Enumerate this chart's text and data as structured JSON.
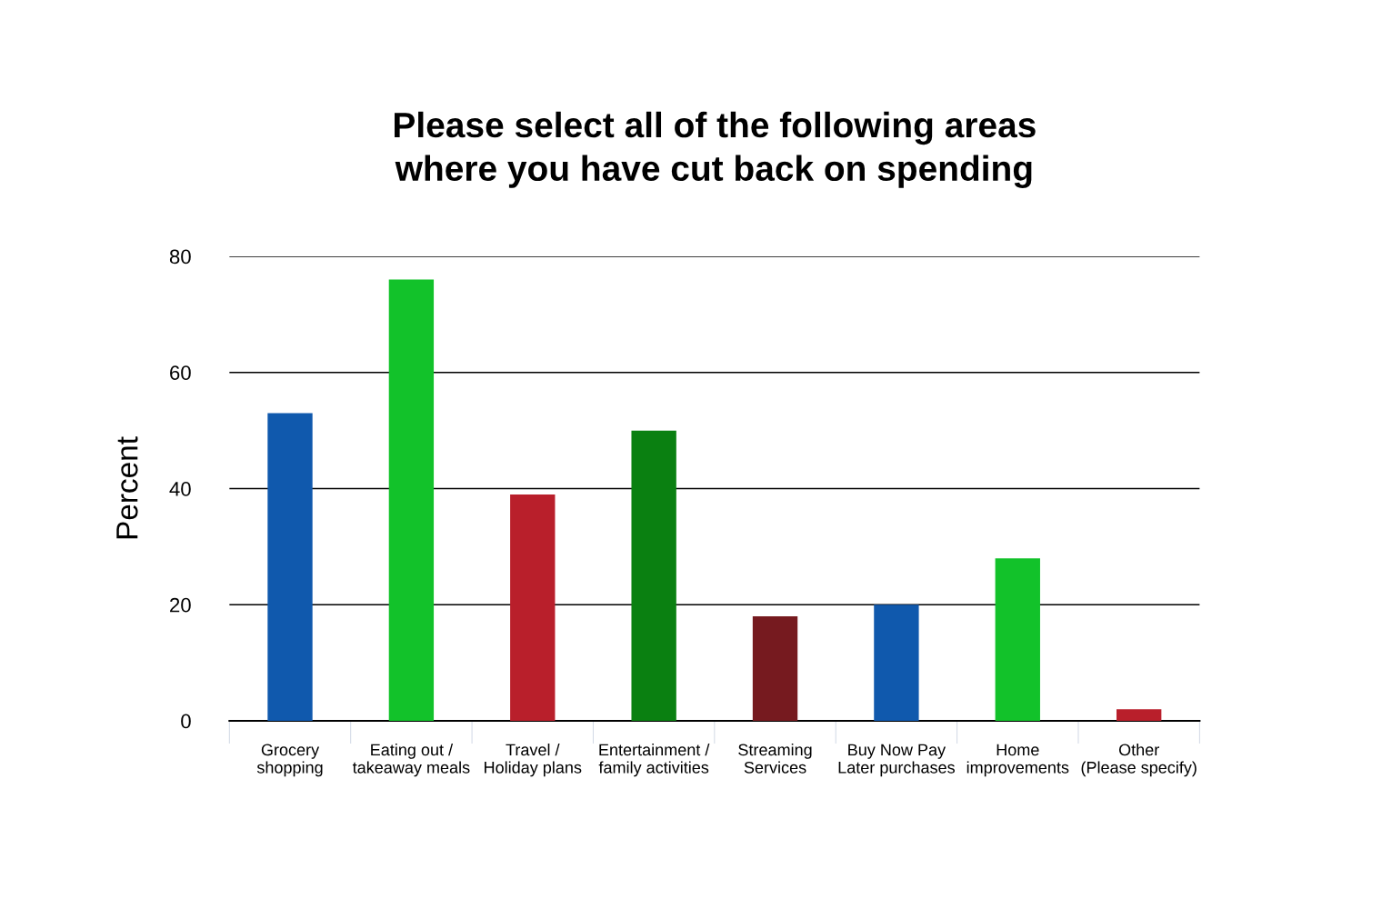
{
  "chart_data": {
    "type": "bar",
    "title": "Please select all of the following areas\nwhere you have cut back on spending",
    "ylabel": "Percent",
    "categories": [
      "Grocery\nshopping",
      "Eating out /\ntakeaway meals",
      "Travel /\nHoliday plans",
      "Entertainment /\nfamily activities",
      "Streaming\nServices",
      "Buy Now Pay\nLater purchases",
      "Home\nimprovements",
      "Other\n(Please specify)"
    ],
    "values": [
      53,
      76,
      39,
      50,
      18,
      20,
      28,
      2
    ],
    "colors": [
      "#1059ad",
      "#12c22a",
      "#b91f2b",
      "#0a8011",
      "#761a1f",
      "#1059ad",
      "#12c22a",
      "#b91f2b"
    ],
    "ylim": [
      0,
      80
    ],
    "yticks": [
      0,
      20,
      40,
      60,
      80
    ],
    "grid": "y"
  }
}
